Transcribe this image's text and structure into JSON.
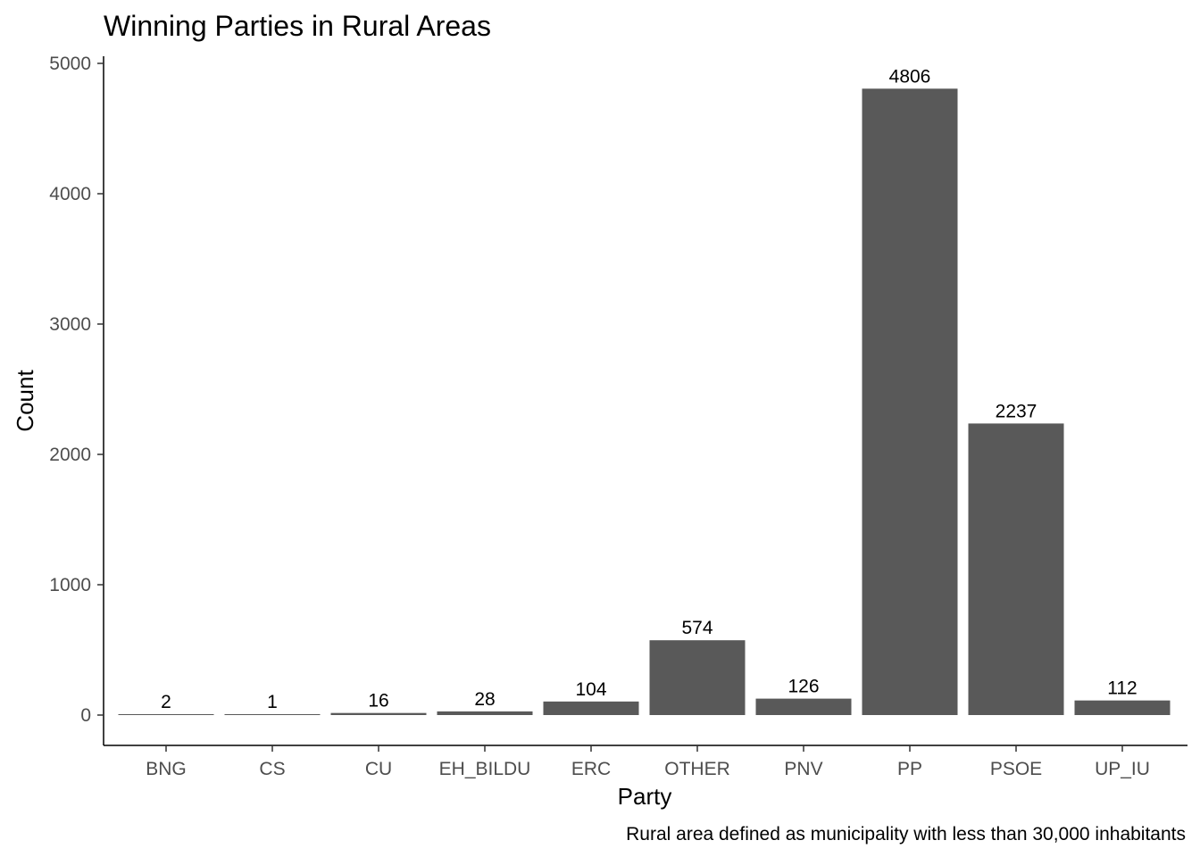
{
  "chart_data": {
    "type": "bar",
    "title": "Winning Parties in Rural Areas",
    "xlabel": "Party",
    "ylabel": "Count",
    "caption": "Rural area defined as municipality with less than 30,000 inhabitants",
    "categories": [
      "BNG",
      "CS",
      "CU",
      "EH_BILDU",
      "ERC",
      "OTHER",
      "PNV",
      "PP",
      "PSOE",
      "UP_IU"
    ],
    "values": [
      2,
      1,
      16,
      28,
      104,
      574,
      126,
      4806,
      2237,
      112
    ],
    "data_labels": [
      "2",
      "1",
      "16",
      "28",
      "104",
      "574",
      "126",
      "4806",
      "2237",
      "112"
    ],
    "yticks": [
      0,
      1000,
      2000,
      3000,
      4000,
      5000
    ],
    "ytick_labels": [
      "0",
      "1000",
      "2000",
      "3000",
      "4000",
      "5000"
    ],
    "ylim": [
      0,
      5000
    ],
    "grid": false,
    "legend": "none",
    "bar_color": "#595959"
  }
}
